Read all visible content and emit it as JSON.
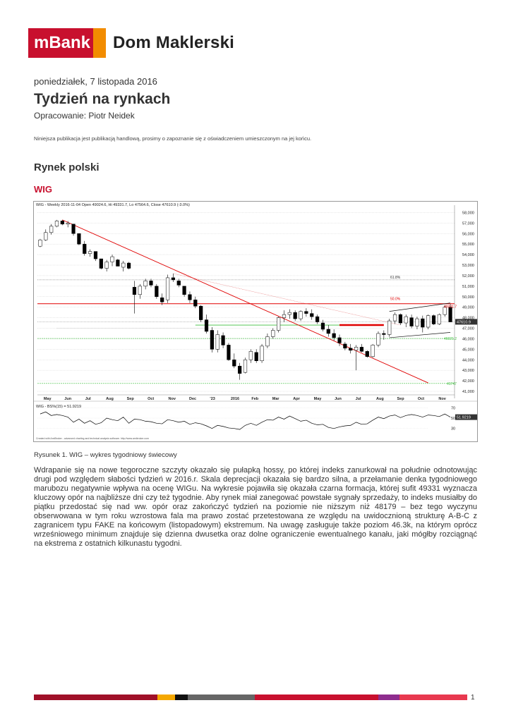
{
  "header": {
    "brand": "mBank",
    "name": "Dom Maklerski"
  },
  "date": "poniedziałek, 7 listopada 2016",
  "title": "Tydzień na rynkach",
  "author": "Opracowanie: Piotr Neidek",
  "disclaimer": "Niniejsza publikacja jest publikacją handlową, prosimy o zapoznanie się z oświadczeniem umieszczonym na jej końcu.",
  "section_title": "Rynek polski",
  "subsection_title": "WIG",
  "chart_data": {
    "type": "candlestick",
    "info_line": "WIG - Weekly 2016-11-04 Open 49024.6, Hi 49331.7, Lo 47564.6, Close 47610.9 (-3.0%)",
    "y_ticks": [
      "58,000",
      "57,000",
      "56,000",
      "55,000",
      "54,000",
      "53,000",
      "52,000",
      "51,000",
      "50,000",
      "49,000",
      "48,000",
      "47,000",
      "46,000",
      "45,000",
      "44,000",
      "43,000",
      "42,000",
      "41,000"
    ],
    "ylim": [
      41000,
      58500
    ],
    "x_ticks": [
      "May",
      "Jun",
      "Jul",
      "Aug",
      "Sep",
      "Oct",
      "Nov",
      "Dec",
      "'23",
      "2016",
      "Feb",
      "Mar",
      "Apr",
      "May",
      "Jun",
      "Jul",
      "Aug",
      "Sep",
      "Oct",
      "Nov"
    ],
    "candles": [
      [
        54800,
        55500,
        54700,
        55400
      ],
      [
        55400,
        56400,
        55300,
        56100
      ],
      [
        56100,
        56900,
        55900,
        56700
      ],
      [
        56700,
        57300,
        56600,
        57200
      ],
      [
        57200,
        57300,
        56800,
        56900
      ],
      [
        56900,
        57200,
        56600,
        57000
      ],
      [
        56900,
        56900,
        55800,
        56000
      ],
      [
        56000,
        56000,
        54900,
        55000
      ],
      [
        55000,
        55300,
        53900,
        54100
      ],
      [
        54100,
        54500,
        53800,
        54300
      ],
      [
        54300,
        54300,
        53400,
        53600
      ],
      [
        53600,
        53600,
        52600,
        52700
      ],
      [
        52700,
        53500,
        52400,
        53300
      ],
      [
        53300,
        54000,
        52900,
        53800
      ],
      [
        53500,
        53600,
        52900,
        52900
      ],
      [
        52800,
        53400,
        52400,
        53200
      ],
      [
        53200,
        53300,
        52600,
        52700
      ],
      [
        50900,
        51500,
        48400,
        50200
      ],
      [
        50200,
        51200,
        49800,
        51000
      ],
      [
        51000,
        51700,
        50700,
        51500
      ],
      [
        51500,
        51700,
        50900,
        51100
      ],
      [
        51000,
        51200,
        49800,
        50000
      ],
      [
        49900,
        50300,
        49200,
        49500
      ],
      [
        49700,
        52100,
        49400,
        51800
      ],
      [
        51800,
        52200,
        51400,
        51600
      ],
      [
        51500,
        51700,
        50900,
        51100
      ],
      [
        51000,
        51000,
        50000,
        50200
      ],
      [
        50200,
        50500,
        49400,
        49700
      ],
      [
        49700,
        50000,
        48900,
        49100
      ],
      [
        49100,
        49200,
        47600,
        47800
      ],
      [
        47800,
        48300,
        46500,
        46700
      ],
      [
        46800,
        47100,
        44700,
        45000
      ],
      [
        45000,
        46800,
        44700,
        46400
      ],
      [
        46300,
        46600,
        45100,
        45400
      ],
      [
        45400,
        45600,
        43900,
        44000
      ],
      [
        44000,
        44600,
        43200,
        43400
      ],
      [
        43400,
        43700,
        42100,
        42700
      ],
      [
        42800,
        44200,
        42700,
        44000
      ],
      [
        44000,
        45000,
        43700,
        44800
      ],
      [
        44700,
        45000,
        43700,
        43900
      ],
      [
        43900,
        45500,
        43700,
        45300
      ],
      [
        45300,
        46500,
        45100,
        46200
      ],
      [
        46200,
        47000,
        46000,
        46800
      ],
      [
        46800,
        48100,
        46600,
        48000
      ],
      [
        48000,
        48700,
        47600,
        48300
      ],
      [
        48300,
        48800,
        47900,
        48500
      ],
      [
        48500,
        48700,
        47700,
        47900
      ],
      [
        47900,
        48700,
        47700,
        48600
      ],
      [
        48600,
        48900,
        48100,
        48400
      ],
      [
        48400,
        48800,
        47800,
        48100
      ],
      [
        48100,
        48300,
        47400,
        47600
      ],
      [
        47500,
        47800,
        46700,
        46900
      ],
      [
        46900,
        47300,
        46200,
        46500
      ],
      [
        46500,
        46900,
        45800,
        46100
      ],
      [
        46100,
        46400,
        45300,
        45600
      ],
      [
        45500,
        45700,
        44900,
        45100
      ],
      [
        45100,
        45500,
        44600,
        44900
      ],
      [
        44900,
        45400,
        43000,
        45200
      ],
      [
        45200,
        45500,
        44700,
        44800
      ],
      [
        44800,
        44900,
        44200,
        44300
      ],
      [
        44300,
        45500,
        44200,
        45400
      ],
      [
        45400,
        46700,
        45200,
        46500
      ],
      [
        46500,
        46800,
        45900,
        46400
      ],
      [
        46400,
        47900,
        46200,
        47700
      ],
      [
        47700,
        48500,
        47400,
        48300
      ],
      [
        48300,
        48400,
        47300,
        47500
      ],
      [
        47500,
        48300,
        47100,
        48100
      ],
      [
        48000,
        48300,
        47000,
        47200
      ],
      [
        47200,
        48100,
        46900,
        47900
      ],
      [
        47900,
        48200,
        46600,
        47100
      ],
      [
        47100,
        48300,
        46900,
        48200
      ],
      [
        48200,
        48300,
        47300,
        47400
      ],
      [
        47400,
        48400,
        47300,
        48300
      ],
      [
        48300,
        49200,
        48100,
        49000
      ],
      [
        49000,
        49300,
        47600,
        47600
      ]
    ],
    "annotations": [
      "61.8%",
      "50.0%",
      "49331.7",
      "47610.9",
      "46021.2",
      "41747"
    ],
    "indicator": {
      "label": "WIG - BS%(15) = 51.9219",
      "y_ticks": [
        "70",
        "50",
        "30"
      ],
      "ylim": [
        20,
        80
      ],
      "last_value": "51.9219",
      "values": [
        58,
        62,
        55,
        57,
        55,
        52,
        42,
        48,
        40,
        45,
        38,
        41,
        50,
        47,
        45,
        52,
        40,
        48,
        47,
        44,
        43,
        40,
        39,
        47,
        45,
        42,
        44,
        38,
        41,
        39,
        35,
        30,
        36,
        34,
        31,
        30,
        28,
        36,
        40,
        36,
        42,
        47,
        46,
        52,
        48,
        54,
        49,
        44,
        46,
        40,
        37,
        38,
        32,
        30,
        33,
        35,
        36,
        42,
        38,
        39,
        46,
        52,
        49,
        54,
        56,
        51,
        55,
        57,
        55,
        52,
        56,
        55,
        53,
        58,
        52
      ]
    },
    "credit": "Created with AmiBroker - advanced charting and technical analysis software. http://www.amibroker.com"
  },
  "caption": "Rysunek 1.  WIG – wykres tygodniowy świecowy",
  "body": "Wdrapanie się na nowe tegoroczne szczyty okazało się pułapką hossy, po której indeks zanurkował na południe odnotowując drugi pod względem słabości tydzień w 2016.r. Skala deprecjacji okazała się bardzo silna, a przełamanie denka tygodniowego marubozu negatywnie wpływa na ocenę WIGu. Na wykresie pojawiła się okazała czarna formacja, której sufit 49331 wyznacza kluczowy opór na najbliższe dni czy też tygodnie. Aby rynek miał zanegować powstałe sygnały sprzedaży, to indeks musiałby do piątku przedostać się nad ww. opór oraz zakończyć tydzień na poziomie nie niższym niż 48179 – bez tego wyczynu obserwowana w tym roku wzrostowa fala ma prawo zostać przetestowana ze względu na uwidocznioną strukturę A-B-C z zagranicem typu FAKE na końcowym (listopadowym) ekstremum. Na uwagę zasługuje także poziom 46.3k, na którym oprócz wrześniowego minimum znajduje się dzienna dwusetka oraz dolne ograniczenie ewentualnego kanału, jaki mógłby rozciągnąć na ekstrema z ostatnich kilkunastu tygodni.",
  "page_number": "1",
  "colors": {
    "brand_red": "#c8102e",
    "brand_orange": "#f28c00",
    "green_level": "#3fbf3f",
    "trend_red": "#e00000"
  }
}
